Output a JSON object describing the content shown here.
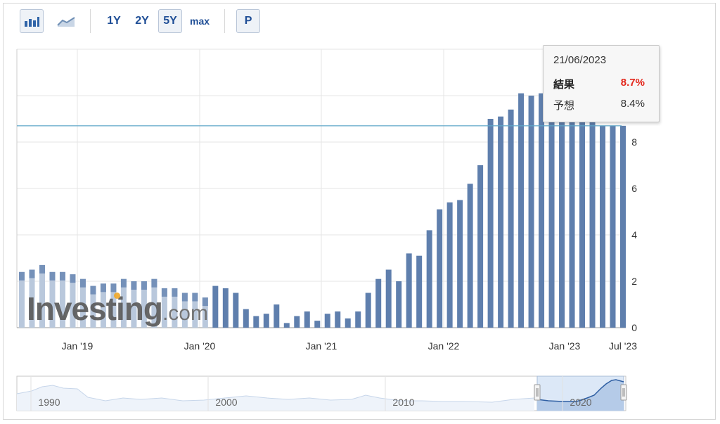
{
  "toolbar": {
    "bar_chart_icon": "bar-chart-icon",
    "line_chart_icon": "line-chart-icon",
    "range_1y": "1Y",
    "range_2y": "2Y",
    "range_5y": "5Y",
    "range_max": "max",
    "p_button": "P",
    "selected_range": "5Y"
  },
  "tooltip": {
    "date": "21/06/2023",
    "actual_label": "結果",
    "actual_value": "8.7%",
    "forecast_label": "予想",
    "forecast_value": "8.4%"
  },
  "watermark": {
    "brand": "Investing",
    "suffix": ".com"
  },
  "colors": {
    "bar": "#5f7fad",
    "bar_faded": "#b9c8dc",
    "forecast_line": "#5fa7c9",
    "actual_value": "#e3261b",
    "grid": "#e6e6e6",
    "navigator_fill": "#dce8f7",
    "navigator_line": "#6f9bd0"
  },
  "chart_data": {
    "type": "bar",
    "title": "",
    "xlabel": "",
    "ylabel": "",
    "ylim": [
      0,
      12
    ],
    "y_ticks": [
      "0",
      "2",
      "4",
      "6",
      "8"
    ],
    "x_tick_labels": [
      "Jan '19",
      "Jan '20",
      "Jan '21",
      "Jan '22",
      "Jan '23",
      "Jul '23"
    ],
    "grid": true,
    "forecast_line_value": 8.7,
    "series": [
      {
        "values": [
          2.4,
          2.5,
          2.7,
          2.4,
          2.4,
          2.3,
          2.1,
          1.8,
          1.9,
          1.9,
          2.1,
          2.0,
          2.0,
          2.1,
          1.7,
          1.7,
          1.5,
          1.5,
          1.3,
          1.8,
          1.7,
          1.5,
          0.8,
          0.5,
          0.6,
          1.0,
          0.2,
          0.5,
          0.7,
          0.3,
          0.6,
          0.7,
          0.4,
          0.7,
          1.5,
          2.1,
          2.5,
          2.0,
          3.2,
          3.1,
          4.2,
          5.1,
          5.4,
          5.5,
          6.2,
          7.0,
          9.0,
          9.1,
          9.4,
          10.1,
          10.0,
          10.1,
          10.1,
          10.1,
          9.2,
          10.1,
          9.0,
          8.7,
          8.7,
          8.7
        ]
      }
    ],
    "navigator": {
      "x_labels": [
        "1990",
        "2000",
        "2010",
        "2020"
      ]
    }
  }
}
